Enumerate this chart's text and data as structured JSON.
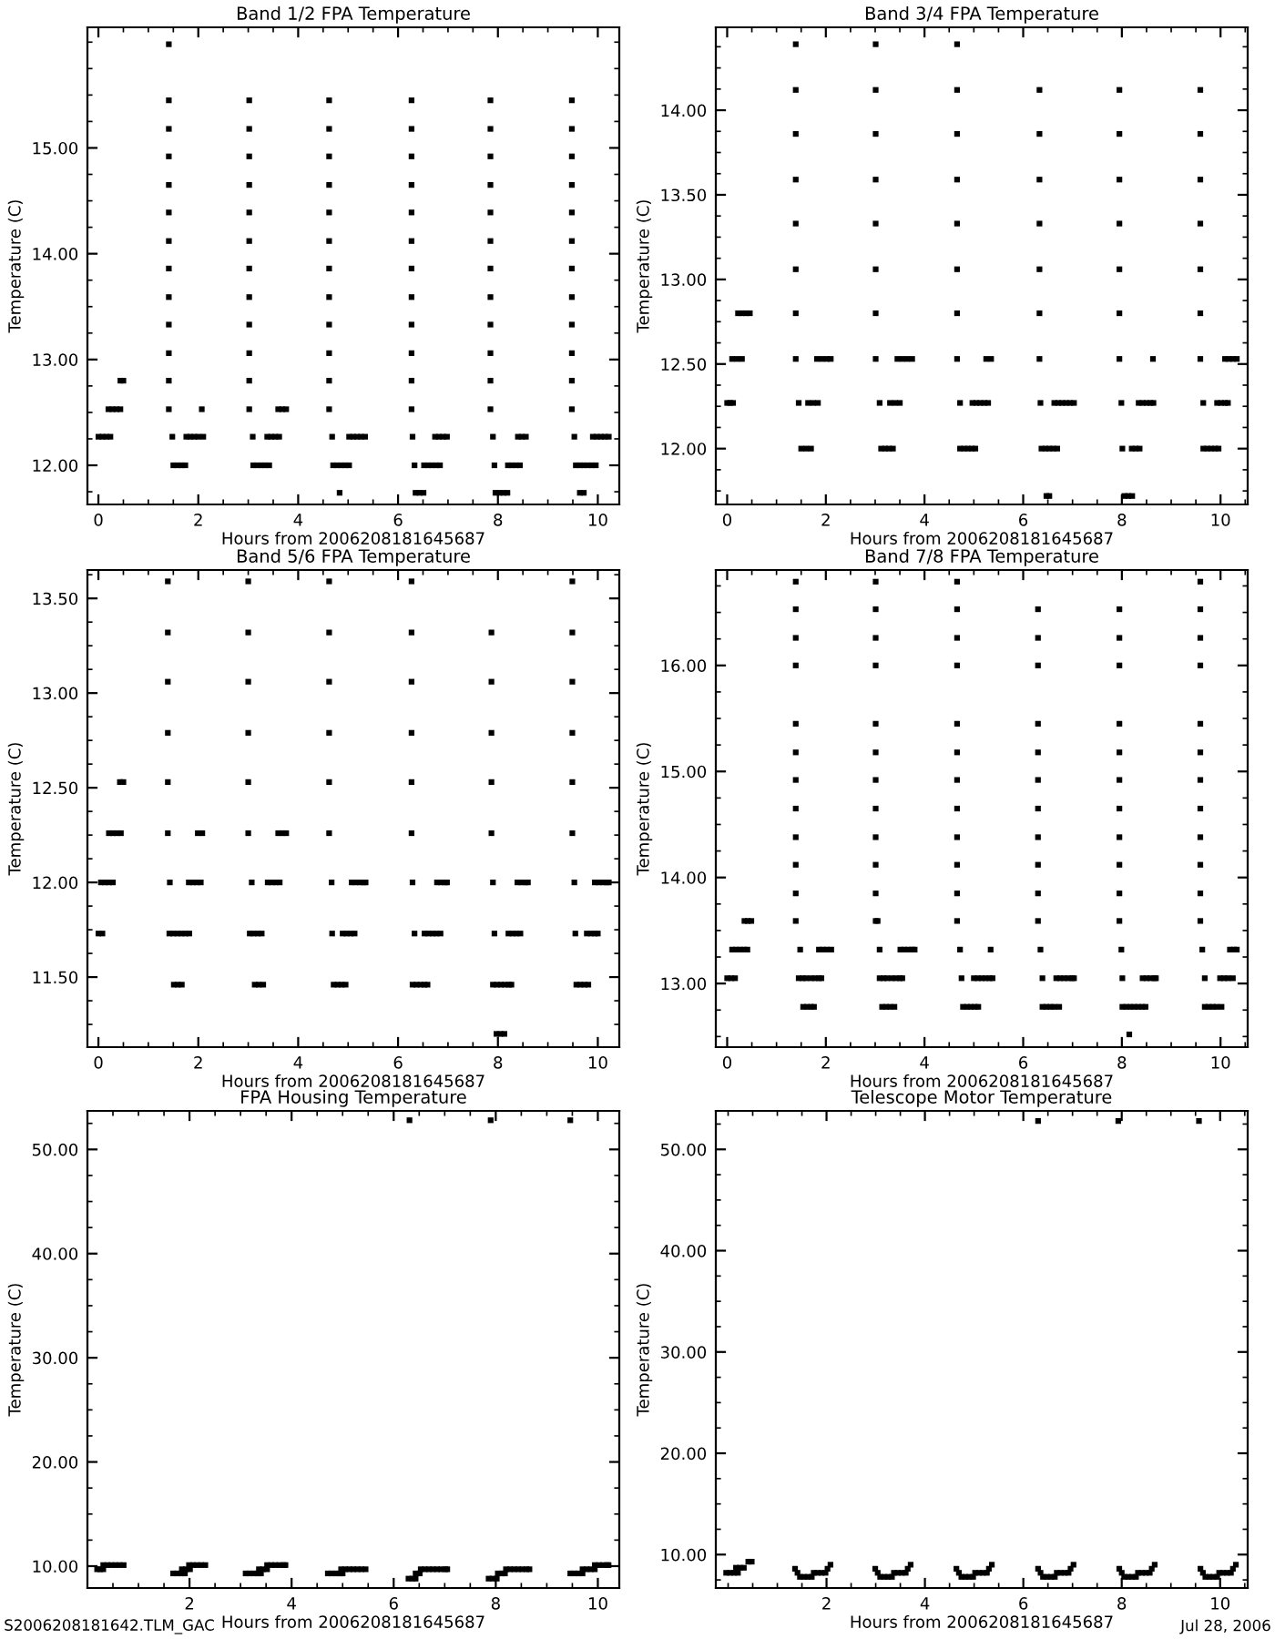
{
  "chart_data": [
    {
      "type": "scatter",
      "title": "Band 1/2 FPA Temperature",
      "xlabel": "Hours from 2006208181645687",
      "ylabel": "Temperature (C)",
      "marker": "square",
      "xlim": [
        -0.22,
        10.43
      ],
      "xticks": [
        0,
        2,
        4,
        6,
        8,
        10
      ],
      "ylim": [
        11.63,
        16.14
      ],
      "yticks": [
        {
          "value": 12,
          "label": "12.00"
        },
        {
          "value": 13,
          "label": "13.00"
        },
        {
          "value": 14,
          "label": "14.00"
        },
        {
          "value": 15,
          "label": "15.00"
        }
      ],
      "series": [
        {
          "color": "#000000",
          "x": [
            0,
            0.08,
            0.16,
            0.24,
            0.2,
            0.28,
            0.36,
            0.44,
            0.44,
            0.5,
            1.41,
            1.41,
            1.41,
            1.41,
            1.41,
            1.41,
            1.41,
            1.41,
            1.41,
            1.41,
            1.41,
            1.41,
            1.41,
            1.48,
            1.5,
            1.58,
            1.66,
            1.74,
            1.76,
            1.84,
            1.92,
            2.0,
            2.1,
            2.07,
            3.02,
            3.02,
            3.02,
            3.02,
            3.02,
            3.02,
            3.02,
            3.02,
            3.02,
            3.02,
            3.02,
            3.02,
            3.09,
            3.1,
            3.18,
            3.26,
            3.34,
            3.42,
            3.38,
            3.46,
            3.54,
            3.62,
            3.6,
            3.68,
            3.76,
            4.62,
            4.62,
            4.62,
            4.62,
            4.62,
            4.62,
            4.62,
            4.62,
            4.62,
            4.62,
            4.62,
            4.62,
            4.68,
            4.7,
            4.78,
            4.86,
            4.94,
            5.02,
            4.83,
            5.02,
            5.1,
            5.18,
            5.26,
            5.34,
            6.27,
            6.27,
            6.27,
            6.27,
            6.27,
            6.27,
            6.27,
            6.27,
            6.27,
            6.27,
            6.27,
            6.27,
            6.29,
            6.33,
            6.35,
            6.43,
            6.51,
            6.52,
            6.6,
            6.68,
            6.76,
            6.84,
            6.74,
            6.82,
            6.9,
            6.98,
            7.85,
            7.85,
            7.85,
            7.85,
            7.85,
            7.85,
            7.85,
            7.85,
            7.85,
            7.85,
            7.85,
            7.85,
            7.9,
            7.93,
            7.95,
            8.03,
            8.11,
            8.19,
            8.2,
            8.28,
            8.36,
            8.44,
            8.4,
            8.48,
            8.56,
            9.48,
            9.48,
            9.48,
            9.48,
            9.48,
            9.48,
            9.48,
            9.48,
            9.48,
            9.48,
            9.48,
            9.48,
            9.53,
            9.56,
            9.64,
            9.72,
            9.8,
            9.88,
            9.96,
            9.64,
            9.72,
            9.9,
            9.98,
            10.06,
            10.14,
            10.22
          ],
          "values": [
            12.27,
            12.27,
            12.27,
            12.27,
            12.53,
            12.53,
            12.53,
            12.53,
            12.8,
            12.8,
            12.53,
            12.8,
            13.06,
            13.33,
            13.59,
            13.86,
            14.12,
            14.39,
            14.65,
            14.92,
            15.18,
            15.45,
            15.98,
            12.27,
            12,
            12,
            12,
            12,
            12.27,
            12.27,
            12.27,
            12.27,
            12.27,
            12.53,
            12.53,
            12.8,
            13.06,
            13.33,
            13.59,
            13.86,
            14.12,
            14.39,
            14.65,
            14.92,
            15.18,
            15.45,
            12.27,
            12,
            12,
            12,
            12,
            12,
            12.27,
            12.27,
            12.27,
            12.27,
            12.53,
            12.53,
            12.53,
            12.53,
            12.8,
            13.06,
            13.33,
            13.59,
            13.86,
            14.12,
            14.39,
            14.65,
            14.92,
            15.18,
            15.45,
            12.27,
            12,
            12,
            12,
            12,
            12,
            11.74,
            12.27,
            12.27,
            12.27,
            12.27,
            12.27,
            12.53,
            12.8,
            13.06,
            13.33,
            13.59,
            13.86,
            14.12,
            14.39,
            14.65,
            14.92,
            15.18,
            15.45,
            12.27,
            12,
            11.74,
            11.74,
            11.74,
            12,
            12,
            12,
            12,
            12,
            12.27,
            12.27,
            12.27,
            12.27,
            12.53,
            12.8,
            13.06,
            13.33,
            13.59,
            13.86,
            14.12,
            14.39,
            14.65,
            14.92,
            15.18,
            15.45,
            12.27,
            12,
            11.74,
            11.74,
            11.74,
            11.74,
            12,
            12,
            12,
            12,
            12.27,
            12.27,
            12.27,
            12.53,
            12.8,
            13.06,
            13.33,
            13.59,
            13.86,
            14.12,
            14.39,
            14.65,
            14.92,
            15.18,
            15.45,
            12.27,
            12,
            12,
            12,
            12,
            12,
            12,
            11.74,
            11.74,
            12.27,
            12.27,
            12.27,
            12.27,
            12.27
          ]
        }
      ]
    },
    {
      "type": "scatter",
      "title": "Band 3/4 FPA Temperature",
      "xlabel": "Hours from 2006208181645687",
      "ylabel": "Temperature (C)",
      "marker": "square",
      "xlim": [
        -0.23,
        10.55
      ],
      "xticks": [
        0,
        2,
        4,
        6,
        8,
        10
      ],
      "ylim": [
        11.67,
        14.49
      ],
      "yticks": [
        {
          "value": 12,
          "label": "12.00"
        },
        {
          "value": 12.5,
          "label": "12.50"
        },
        {
          "value": 13,
          "label": "13.00"
        },
        {
          "value": 13.5,
          "label": "13.50"
        },
        {
          "value": 14,
          "label": "14.00"
        }
      ],
      "series": [
        {
          "color": "#000000",
          "x": [
            0,
            0.06,
            0.12,
            0.1,
            0.2,
            0.3,
            0.22,
            0.3,
            0.38,
            0.46,
            1.39,
            1.39,
            1.39,
            1.39,
            1.39,
            1.39,
            1.39,
            1.39,
            1.45,
            1.5,
            1.6,
            1.7,
            1.64,
            1.74,
            1.84,
            1.82,
            1.92,
            2.02,
            2.1,
            3.01,
            3.01,
            3.01,
            3.01,
            3.01,
            3.01,
            3.01,
            3.01,
            3.09,
            3.12,
            3.2,
            3.28,
            3.36,
            3.3,
            3.4,
            3.5,
            3.45,
            3.55,
            3.65,
            3.75,
            4.66,
            4.66,
            4.66,
            4.66,
            4.66,
            4.66,
            4.66,
            4.66,
            4.72,
            4.72,
            4.8,
            4.88,
            4.96,
            5.03,
            4.97,
            5.05,
            5.13,
            5.21,
            5.29,
            5.25,
            5.35,
            6.33,
            6.33,
            6.33,
            6.33,
            6.33,
            6.33,
            6.33,
            6.35,
            6.37,
            6.45,
            6.53,
            6.61,
            6.69,
            6.47,
            6.53,
            6.63,
            6.71,
            6.79,
            6.87,
            6.95,
            7.03,
            7.95,
            7.95,
            7.95,
            7.95,
            7.95,
            7.95,
            7.95,
            7.99,
            8.01,
            8.05,
            8.13,
            8.21,
            8.2,
            8.28,
            8.36,
            8.34,
            8.42,
            8.5,
            8.58,
            8.64,
            8.63,
            9.59,
            9.59,
            9.59,
            9.59,
            9.59,
            9.59,
            9.59,
            9.65,
            9.65,
            9.73,
            9.81,
            9.89,
            9.96,
            9.93,
            10.01,
            10.09,
            10.15,
            10.09,
            10.17,
            10.25,
            10.33
          ],
          "values": [
            12.27,
            12.27,
            12.27,
            12.53,
            12.53,
            12.53,
            12.8,
            12.8,
            12.8,
            12.8,
            12.53,
            12.8,
            13.06,
            13.33,
            13.59,
            13.86,
            14.12,
            14.39,
            12.27,
            12,
            12,
            12,
            12.27,
            12.27,
            12.27,
            12.53,
            12.53,
            12.53,
            12.53,
            12.53,
            12.8,
            13.06,
            13.33,
            13.59,
            13.86,
            14.12,
            14.39,
            12.27,
            12,
            12,
            12,
            12,
            12.27,
            12.27,
            12.27,
            12.53,
            12.53,
            12.53,
            12.53,
            12.53,
            12.8,
            13.06,
            13.33,
            13.59,
            13.86,
            14.12,
            14.39,
            12.27,
            12,
            12,
            12,
            12,
            12,
            12.27,
            12.27,
            12.27,
            12.27,
            12.27,
            12.53,
            12.53,
            12.53,
            12.8,
            13.06,
            13.33,
            13.59,
            13.86,
            14.12,
            12.27,
            12,
            12,
            12,
            12,
            12,
            11.72,
            11.72,
            12.27,
            12.27,
            12.27,
            12.27,
            12.27,
            12.27,
            12.53,
            12.8,
            13.06,
            13.33,
            13.59,
            13.86,
            14.12,
            12.27,
            12,
            11.72,
            11.72,
            11.72,
            12,
            12,
            12,
            12.27,
            12.27,
            12.27,
            12.27,
            12.27,
            12.53,
            12.53,
            12.8,
            13.06,
            13.33,
            13.59,
            13.86,
            14.12,
            12.27,
            12,
            12,
            12,
            12,
            12,
            12.27,
            12.27,
            12.27,
            12.27,
            12.53,
            12.53,
            12.53,
            12.53
          ]
        }
      ]
    },
    {
      "type": "scatter",
      "title": "Band 5/6 FPA Temperature",
      "xlabel": "Hours from 2006208181645687",
      "ylabel": "Temperature (C)",
      "marker": "square",
      "xlim": [
        -0.22,
        10.43
      ],
      "xticks": [
        0,
        2,
        4,
        6,
        8,
        10
      ],
      "ylim": [
        11.13,
        13.65
      ],
      "yticks": [
        {
          "value": 11.5,
          "label": "11.50"
        },
        {
          "value": 12,
          "label": "12.00"
        },
        {
          "value": 12.5,
          "label": "12.50"
        },
        {
          "value": 13,
          "label": "13.00"
        },
        {
          "value": 13.5,
          "label": "13.50"
        }
      ],
      "series": [
        {
          "color": "#000000",
          "x": [
            0,
            0.08,
            0.05,
            0.13,
            0.21,
            0.29,
            0.21,
            0.29,
            0.37,
            0.45,
            0.43,
            0.5,
            1.39,
            1.39,
            1.39,
            1.39,
            1.39,
            1.39,
            1.43,
            1.42,
            1.5,
            1.58,
            1.66,
            1.74,
            1.82,
            1.51,
            1.59,
            1.67,
            1.81,
            1.89,
            1.97,
            2.05,
            1.99,
            2.08,
            3.0,
            3.0,
            3.0,
            3.0,
            3.0,
            3.0,
            3.07,
            3.03,
            3.11,
            3.19,
            3.27,
            3.13,
            3.21,
            3.3,
            3.39,
            3.47,
            3.55,
            3.63,
            3.6,
            3.68,
            3.76,
            4.62,
            4.62,
            4.62,
            4.62,
            4.62,
            4.62,
            4.67,
            4.68,
            4.71,
            4.79,
            4.87,
            4.95,
            4.89,
            4.97,
            5.05,
            5.13,
            5.07,
            5.15,
            5.23,
            5.31,
            5.35,
            6.27,
            6.27,
            6.27,
            6.27,
            6.27,
            6.27,
            6.29,
            6.33,
            6.29,
            6.37,
            6.45,
            6.53,
            6.59,
            6.53,
            6.61,
            6.69,
            6.77,
            6.85,
            6.78,
            6.86,
            6.94,
            6.98,
            7.87,
            7.87,
            7.87,
            7.87,
            7.87,
            7.9,
            7.93,
            7.9,
            7.98,
            8.06,
            8.14,
            8.22,
            8.27,
            7.97,
            8.05,
            8.13,
            8.21,
            8.29,
            8.37,
            8.45,
            8.39,
            8.47,
            8.55,
            8.6,
            9.49,
            9.49,
            9.49,
            9.49,
            9.49,
            9.49,
            9.53,
            9.55,
            9.57,
            9.65,
            9.73,
            9.81,
            9.78,
            9.86,
            9.94,
            10.0,
            9.94,
            10.02,
            10.1,
            10.18,
            10.22
          ],
          "values": [
            11.73,
            11.73,
            12,
            12,
            12,
            12,
            12.26,
            12.26,
            12.26,
            12.26,
            12.53,
            12.53,
            12.26,
            12.53,
            12.79,
            13.06,
            13.32,
            13.59,
            12,
            11.73,
            11.73,
            11.73,
            11.73,
            11.73,
            11.73,
            11.46,
            11.46,
            11.46,
            12,
            12,
            12,
            12,
            12.26,
            12.26,
            12.26,
            12.53,
            12.79,
            13.06,
            13.32,
            13.59,
            12,
            11.73,
            11.73,
            11.73,
            11.73,
            11.46,
            11.46,
            11.46,
            12,
            12,
            12,
            12,
            12.26,
            12.26,
            12.26,
            12.26,
            12.53,
            12.79,
            13.06,
            13.32,
            13.59,
            12,
            11.73,
            11.46,
            11.46,
            11.46,
            11.46,
            11.73,
            11.73,
            11.73,
            11.73,
            12,
            12,
            12,
            12,
            12,
            12.26,
            12.53,
            12.79,
            13.06,
            13.32,
            13.59,
            12,
            11.73,
            11.46,
            11.46,
            11.46,
            11.46,
            11.46,
            11.73,
            11.73,
            11.73,
            11.73,
            11.73,
            12,
            12,
            12,
            12,
            12.26,
            12.53,
            12.79,
            13.06,
            13.32,
            12,
            11.73,
            11.46,
            11.46,
            11.46,
            11.46,
            11.46,
            11.46,
            11.2,
            11.2,
            11.2,
            11.73,
            11.73,
            11.73,
            11.73,
            12,
            12,
            12,
            12,
            12.26,
            12.53,
            12.79,
            13.06,
            13.32,
            13.59,
            12,
            11.73,
            11.46,
            11.46,
            11.46,
            11.46,
            11.73,
            11.73,
            11.73,
            11.73,
            12,
            12,
            12,
            12,
            12
          ]
        }
      ]
    },
    {
      "type": "scatter",
      "title": "Band 7/8 FPA Temperature",
      "xlabel": "Hours from 2006208181645687",
      "ylabel": "Temperature (C)",
      "marker": "square",
      "xlim": [
        -0.23,
        10.55
      ],
      "xticks": [
        0,
        2,
        4,
        6,
        8,
        10
      ],
      "ylim": [
        12.4,
        16.9
      ],
      "yticks": [
        {
          "value": 13,
          "label": "13.00"
        },
        {
          "value": 14,
          "label": "14.00"
        },
        {
          "value": 15,
          "label": "15.00"
        },
        {
          "value": 16,
          "label": "16.00"
        }
      ],
      "series": [
        {
          "color": "#000000",
          "x": [
            0,
            0.08,
            0.16,
            0.1,
            0.18,
            0.26,
            0.34,
            0.41,
            0.35,
            0.42,
            0.49,
            1.39,
            1.39,
            1.39,
            1.39,
            1.39,
            1.39,
            1.39,
            1.39,
            1.39,
            1.39,
            1.39,
            1.39,
            1.48,
            1.45,
            1.53,
            1.6,
            1.54,
            1.62,
            1.7,
            1.76,
            1.7,
            1.78,
            1.86,
            1.91,
            1.86,
            1.94,
            2.02,
            2.11,
            3.01,
            3.01,
            3.01,
            3.01,
            3.01,
            3.01,
            3.01,
            3.01,
            3.01,
            3.01,
            3.01,
            3.01,
            3.05,
            3.09,
            3.09,
            3.17,
            3.24,
            3.14,
            3.22,
            3.3,
            3.39,
            3.34,
            3.42,
            3.5,
            3.55,
            3.51,
            3.59,
            3.67,
            3.75,
            3.8,
            4.66,
            4.66,
            4.66,
            4.66,
            4.66,
            4.66,
            4.66,
            4.66,
            4.66,
            4.66,
            4.66,
            4.66,
            4.72,
            4.75,
            4.78,
            4.86,
            4.94,
            5.02,
            5.09,
            5.0,
            5.08,
            5.16,
            5.24,
            5.32,
            5.38,
            5.34,
            6.3,
            6.3,
            6.3,
            6.3,
            6.3,
            6.3,
            6.3,
            6.3,
            6.3,
            6.3,
            6.3,
            6.35,
            6.39,
            6.39,
            6.47,
            6.55,
            6.63,
            6.73,
            6.67,
            6.75,
            6.83,
            6.91,
            6.99,
            7.03,
            7.95,
            7.95,
            7.95,
            7.95,
            7.95,
            7.95,
            7.95,
            7.95,
            7.95,
            7.95,
            7.95,
            7.99,
            8.01,
            8.01,
            8.09,
            8.17,
            8.25,
            8.33,
            8.41,
            8.48,
            8.15,
            8.42,
            8.5,
            8.58,
            8.66,
            8.69,
            9.59,
            9.59,
            9.59,
            9.59,
            9.59,
            9.59,
            9.59,
            9.59,
            9.59,
            9.59,
            9.59,
            9.59,
            9.63,
            9.68,
            9.68,
            9.76,
            9.84,
            9.92,
            10.02,
            9.99,
            10.07,
            10.15,
            10.25,
            10.19,
            10.27,
            10.33
          ],
          "values": [
            13.05,
            13.05,
            13.05,
            13.32,
            13.32,
            13.32,
            13.32,
            13.32,
            13.59,
            13.59,
            13.59,
            13.59,
            13.85,
            14.12,
            14.38,
            14.65,
            14.92,
            15.18,
            15.45,
            16.0,
            16.26,
            16.53,
            16.79,
            13.32,
            13.05,
            13.05,
            13.05,
            12.78,
            12.78,
            12.78,
            12.78,
            13.05,
            13.05,
            13.05,
            13.05,
            13.32,
            13.32,
            13.32,
            13.32,
            13.59,
            13.85,
            14.12,
            14.38,
            14.65,
            14.92,
            15.18,
            15.45,
            16.0,
            16.26,
            16.53,
            16.79,
            13.59,
            13.32,
            13.05,
            13.05,
            13.05,
            12.78,
            12.78,
            12.78,
            12.78,
            13.05,
            13.05,
            13.05,
            13.05,
            13.32,
            13.32,
            13.32,
            13.32,
            13.32,
            13.59,
            13.85,
            14.12,
            14.38,
            14.65,
            14.92,
            15.18,
            15.45,
            16.0,
            16.26,
            16.53,
            16.79,
            13.32,
            13.05,
            12.78,
            12.78,
            12.78,
            12.78,
            12.78,
            13.05,
            13.05,
            13.05,
            13.05,
            13.05,
            13.05,
            13.32,
            13.59,
            13.85,
            14.12,
            14.38,
            14.65,
            14.92,
            15.18,
            15.45,
            16.0,
            16.26,
            16.53,
            13.32,
            13.05,
            12.78,
            12.78,
            12.78,
            12.78,
            12.78,
            13.05,
            13.05,
            13.05,
            13.05,
            13.05,
            13.05,
            13.59,
            13.85,
            14.12,
            14.38,
            14.65,
            14.92,
            15.18,
            15.45,
            16.0,
            16.26,
            16.53,
            13.32,
            13.05,
            12.78,
            12.78,
            12.78,
            12.78,
            12.78,
            12.78,
            12.78,
            12.52,
            13.05,
            13.05,
            13.05,
            13.05,
            13.05,
            13.59,
            13.85,
            14.12,
            14.38,
            14.65,
            14.92,
            15.18,
            15.45,
            16.0,
            16.26,
            16.53,
            16.79,
            13.32,
            13.05,
            12.78,
            12.78,
            12.78,
            12.78,
            12.78,
            13.05,
            13.05,
            13.05,
            13.05,
            13.32,
            13.32,
            13.32
          ]
        }
      ]
    },
    {
      "type": "scatter",
      "title": "FPA Housing Temperature",
      "xlabel": "Hours from 2006208181645687",
      "ylabel": "Temperature (C)",
      "marker": "square",
      "xlim": [
        0,
        10.42
      ],
      "xticks": [
        2,
        4,
        6,
        8,
        10
      ],
      "ylim": [
        7.9,
        53.7
      ],
      "yticks": [
        {
          "value": 10,
          "label": "10.00"
        },
        {
          "value": 20,
          "label": "20.00"
        },
        {
          "value": 30,
          "label": "30.00"
        },
        {
          "value": 40,
          "label": "40.00"
        },
        {
          "value": 50,
          "label": "50.00"
        }
      ],
      "annotations": [
        "S2006208181642.TLM_GAC"
      ],
      "series": [
        {
          "color": "#000000",
          "x": [
            0.19,
            0.25,
            0.31,
            0.31,
            0.39,
            0.47,
            0.55,
            0.63,
            0.71,
            1.68,
            1.76,
            1.84,
            1.91,
            1.85,
            1.93,
            2.01,
            1.99,
            2.07,
            2.15,
            2.23,
            2.31,
            3.1,
            3.18,
            3.26,
            3.34,
            3.4,
            3.36,
            3.44,
            3.52,
            3.52,
            3.6,
            3.68,
            3.76,
            3.84,
            3.88,
            4.71,
            4.79,
            4.87,
            4.95,
            5.0,
            4.97,
            5.05,
            5.13,
            5.21,
            5.29,
            5.37,
            5.45,
            6.31,
            6.29,
            6.37,
            6.43,
            6.43,
            6.51,
            6.53,
            6.61,
            6.69,
            6.77,
            6.85,
            6.93,
            7.01,
            7.05,
            7.9,
            7.86,
            7.94,
            8.02,
            8.04,
            8.12,
            8.18,
            8.2,
            8.28,
            8.36,
            8.44,
            8.52,
            8.6,
            8.66,
            9.46,
            9.46,
            9.54,
            9.62,
            9.7,
            9.7,
            9.78,
            9.86,
            9.94,
            9.94,
            10.02,
            10.1,
            10.18,
            10.21
          ],
          "values": [
            9.7,
            9.7,
            9.7,
            10.1,
            10.1,
            10.1,
            10.1,
            10.1,
            10.1,
            9.3,
            9.3,
            9.3,
            9.3,
            9.7,
            9.7,
            9.7,
            10.1,
            10.1,
            10.1,
            10.1,
            10.1,
            9.3,
            9.3,
            9.3,
            9.3,
            9.3,
            9.7,
            9.7,
            9.7,
            10.1,
            10.1,
            10.1,
            10.1,
            10.1,
            10.1,
            9.3,
            9.3,
            9.3,
            9.3,
            9.3,
            9.7,
            9.7,
            9.7,
            9.7,
            9.7,
            9.7,
            9.7,
            52.8,
            8.8,
            8.8,
            8.8,
            9.3,
            9.3,
            9.7,
            9.7,
            9.7,
            9.7,
            9.7,
            9.7,
            9.7,
            9.7,
            52.8,
            8.8,
            8.8,
            8.8,
            9.3,
            9.3,
            9.3,
            9.7,
            9.7,
            9.7,
            9.7,
            9.7,
            9.7,
            9.7,
            52.8,
            9.3,
            9.3,
            9.3,
            9.3,
            9.7,
            9.7,
            9.7,
            9.7,
            10.1,
            10.1,
            10.1,
            10.1,
            10.1
          ]
        }
      ]
    },
    {
      "type": "scatter",
      "title": "Telescope Motor Temperature",
      "xlabel": "Hours from 2006208181645687",
      "ylabel": "Temperature (C)",
      "marker": "square",
      "xlim": [
        -0.25,
        10.56
      ],
      "xticks": [
        2,
        4,
        6,
        8,
        10
      ],
      "ylim": [
        6.7,
        53.8
      ],
      "yticks": [
        {
          "value": 10,
          "label": "10.00"
        },
        {
          "value": 20,
          "label": "20.00"
        },
        {
          "value": 30,
          "label": "30.00"
        },
        {
          "value": 40,
          "label": "40.00"
        },
        {
          "value": 50,
          "label": "50.00"
        }
      ],
      "annotations": [
        "Jul 28, 2006"
      ],
      "series": [
        {
          "color": "#000000",
          "x": [
            -0.04,
            0.04,
            0.12,
            0.2,
            0.16,
            0.24,
            0.32,
            0.41,
            0.48,
            1.36,
            1.41,
            1.46,
            1.54,
            1.62,
            1.7,
            1.74,
            1.82,
            1.9,
            1.98,
            2.02,
            2.08,
            2.99,
            3.04,
            3.09,
            3.17,
            3.25,
            3.33,
            3.37,
            3.45,
            3.53,
            3.61,
            3.65,
            3.71,
            4.64,
            4.69,
            4.74,
            4.82,
            4.9,
            4.98,
            5.02,
            5.1,
            5.18,
            5.26,
            5.3,
            5.36,
            6.3,
            6.3,
            6.35,
            6.4,
            6.48,
            6.56,
            6.64,
            6.68,
            6.76,
            6.84,
            6.92,
            6.96,
            7.02,
            7.93,
            7.95,
            8.0,
            8.05,
            8.13,
            8.21,
            8.29,
            8.33,
            8.41,
            8.49,
            8.57,
            8.61,
            8.67,
            9.57,
            9.6,
            9.65,
            9.7,
            9.78,
            9.86,
            9.94,
            9.98,
            10.06,
            10.14,
            10.22,
            10.26,
            10.32
          ],
          "values": [
            8.2,
            8.2,
            8.2,
            8.2,
            8.7,
            8.7,
            8.7,
            9.3,
            9.3,
            8.6,
            8.2,
            7.8,
            7.8,
            7.8,
            7.8,
            8.2,
            8.2,
            8.2,
            8.2,
            8.6,
            9.0,
            8.6,
            8.2,
            7.8,
            7.8,
            7.8,
            7.8,
            8.2,
            8.2,
            8.2,
            8.2,
            8.6,
            9.0,
            8.6,
            8.2,
            7.8,
            7.8,
            7.8,
            7.8,
            8.2,
            8.2,
            8.2,
            8.2,
            8.6,
            9.0,
            52.8,
            8.6,
            8.2,
            7.8,
            7.8,
            7.8,
            7.8,
            8.2,
            8.2,
            8.2,
            8.2,
            8.6,
            9.0,
            52.8,
            8.6,
            8.2,
            7.8,
            7.8,
            7.8,
            7.8,
            8.2,
            8.2,
            8.2,
            8.2,
            8.6,
            9.0,
            52.8,
            8.6,
            8.2,
            7.8,
            7.8,
            7.8,
            7.8,
            8.2,
            8.2,
            8.2,
            8.2,
            8.6,
            9.0
          ]
        }
      ]
    }
  ]
}
